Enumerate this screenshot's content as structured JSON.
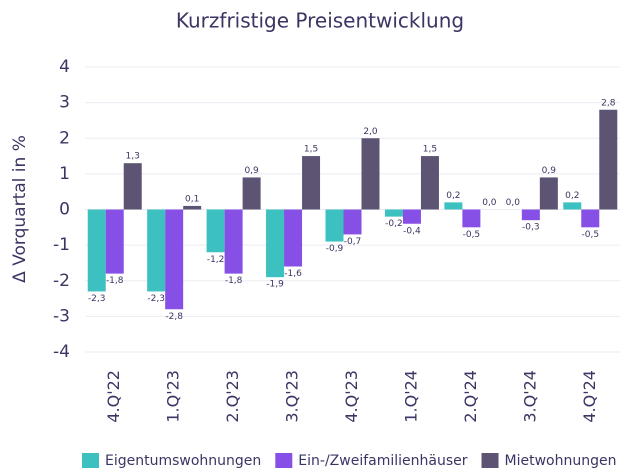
{
  "chart_data": {
    "type": "bar",
    "title": "Kurzfristige Preisentwicklung",
    "y_label": "Δ Vorquartal in %",
    "categories": [
      "4.Q'22",
      "1.Q'23",
      "2.Q'23",
      "3.Q'23",
      "4.Q'23",
      "1.Q'24",
      "2.Q'24",
      "3.Q'24",
      "4.Q'24"
    ],
    "series": [
      {
        "name": "Eigentumswohnungen",
        "color": "#3cc0c0",
        "values": [
          -2.3,
          -2.3,
          -1.2,
          -1.9,
          -0.9,
          -0.2,
          0.2,
          0.0,
          0.2
        ],
        "value_labels": [
          "-2,3",
          "-2,3",
          "-1,2",
          "-1,9",
          "-0,9",
          "-0,2",
          "0,2",
          "0,0",
          "0,2"
        ]
      },
      {
        "name": "Ein-/Zweifamilienhäuser",
        "color": "#8650e6",
        "values": [
          -1.8,
          -2.8,
          -1.8,
          -1.6,
          -0.7,
          -0.4,
          -0.5,
          -0.3,
          -0.5
        ],
        "value_labels": [
          "-1,8",
          "-2,8",
          "-1,8",
          "-1,6",
          "-0,7",
          "-0,4",
          "-0,5",
          "-0,3",
          "-0,5"
        ]
      },
      {
        "name": "Mietwohnungen",
        "color": "#5d5474",
        "values": [
          1.3,
          0.1,
          0.9,
          1.5,
          2.0,
          1.5,
          0.0,
          0.9,
          2.8
        ],
        "value_labels": [
          "1,3",
          "0,1",
          "0,9",
          "1,5",
          "2,0",
          "1,5",
          "0,0",
          "0,9",
          "2,8"
        ]
      }
    ],
    "ylim": [
      -4,
      4
    ],
    "yticks": [
      -4,
      -3,
      -2,
      -1,
      0,
      1,
      2,
      3,
      4
    ],
    "grid": true
  }
}
